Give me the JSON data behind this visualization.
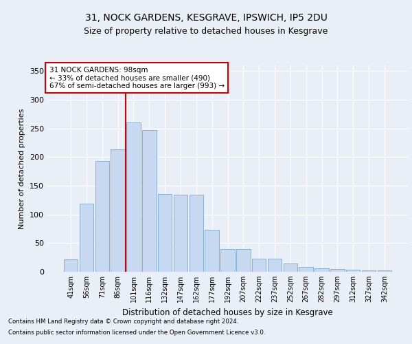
{
  "title1": "31, NOCK GARDENS, KESGRAVE, IPSWICH, IP5 2DU",
  "title2": "Size of property relative to detached houses in Kesgrave",
  "xlabel": "Distribution of detached houses by size in Kesgrave",
  "ylabel": "Number of detached properties",
  "categories": [
    "41sqm",
    "56sqm",
    "71sqm",
    "86sqm",
    "101sqm",
    "116sqm",
    "132sqm",
    "147sqm",
    "162sqm",
    "177sqm",
    "192sqm",
    "207sqm",
    "222sqm",
    "237sqm",
    "252sqm",
    "267sqm",
    "282sqm",
    "297sqm",
    "312sqm",
    "327sqm",
    "342sqm"
  ],
  "values": [
    22,
    119,
    193,
    214,
    260,
    247,
    136,
    135,
    135,
    73,
    40,
    40,
    23,
    23,
    14,
    9,
    6,
    5,
    4,
    2,
    2
  ],
  "bar_color": "#c6d9f0",
  "bar_edge_color": "#7aa8cc",
  "vline_color": "#cc0000",
  "vline_pos": 3.5,
  "annotation_title": "31 NOCK GARDENS: 98sqm",
  "annotation_line2": "← 33% of detached houses are smaller (490)",
  "annotation_line3": "67% of semi-detached houses are larger (993) →",
  "annotation_box_color": "#cc0000",
  "footnote1": "Contains HM Land Registry data © Crown copyright and database right 2024.",
  "footnote2": "Contains public sector information licensed under the Open Government Licence v3.0.",
  "ylim": [
    0,
    360
  ],
  "yticks": [
    0,
    50,
    100,
    150,
    200,
    250,
    300,
    350
  ],
  "bg_color": "#eaeff7",
  "plot_bg_color": "#eaeff7",
  "grid_color": "#ffffff",
  "title1_fontsize": 10,
  "title2_fontsize": 9
}
